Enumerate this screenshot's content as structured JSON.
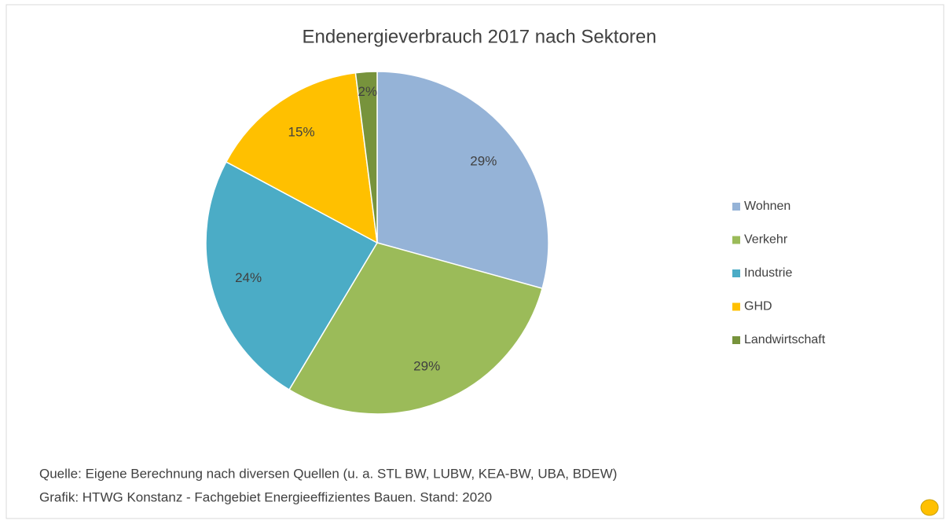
{
  "chart_data": {
    "type": "pie",
    "title": "Endenergieverbrauch 2017 nach Sektoren",
    "categories": [
      "Wohnen",
      "Verkehr",
      "Industrie",
      "GHD",
      "Landwirtschaft"
    ],
    "values": [
      29,
      29,
      24,
      15,
      2
    ],
    "value_labels": [
      "29%",
      "29%",
      "24%",
      "15%",
      "2%"
    ],
    "colors": [
      "#95b3d7",
      "#9bbb59",
      "#4bacc6",
      "#ffc000",
      "#77933c"
    ],
    "legend": "right",
    "notes": [
      "Quelle: Eigene Berechnung nach diversen Quellen (u. a. STL BW, LUBW, KEA-BW, UBA, BDEW)",
      "Grafik: HTWG Konstanz - Fachgebiet Energieeffizientes Bauen. Stand: 2020"
    ]
  }
}
